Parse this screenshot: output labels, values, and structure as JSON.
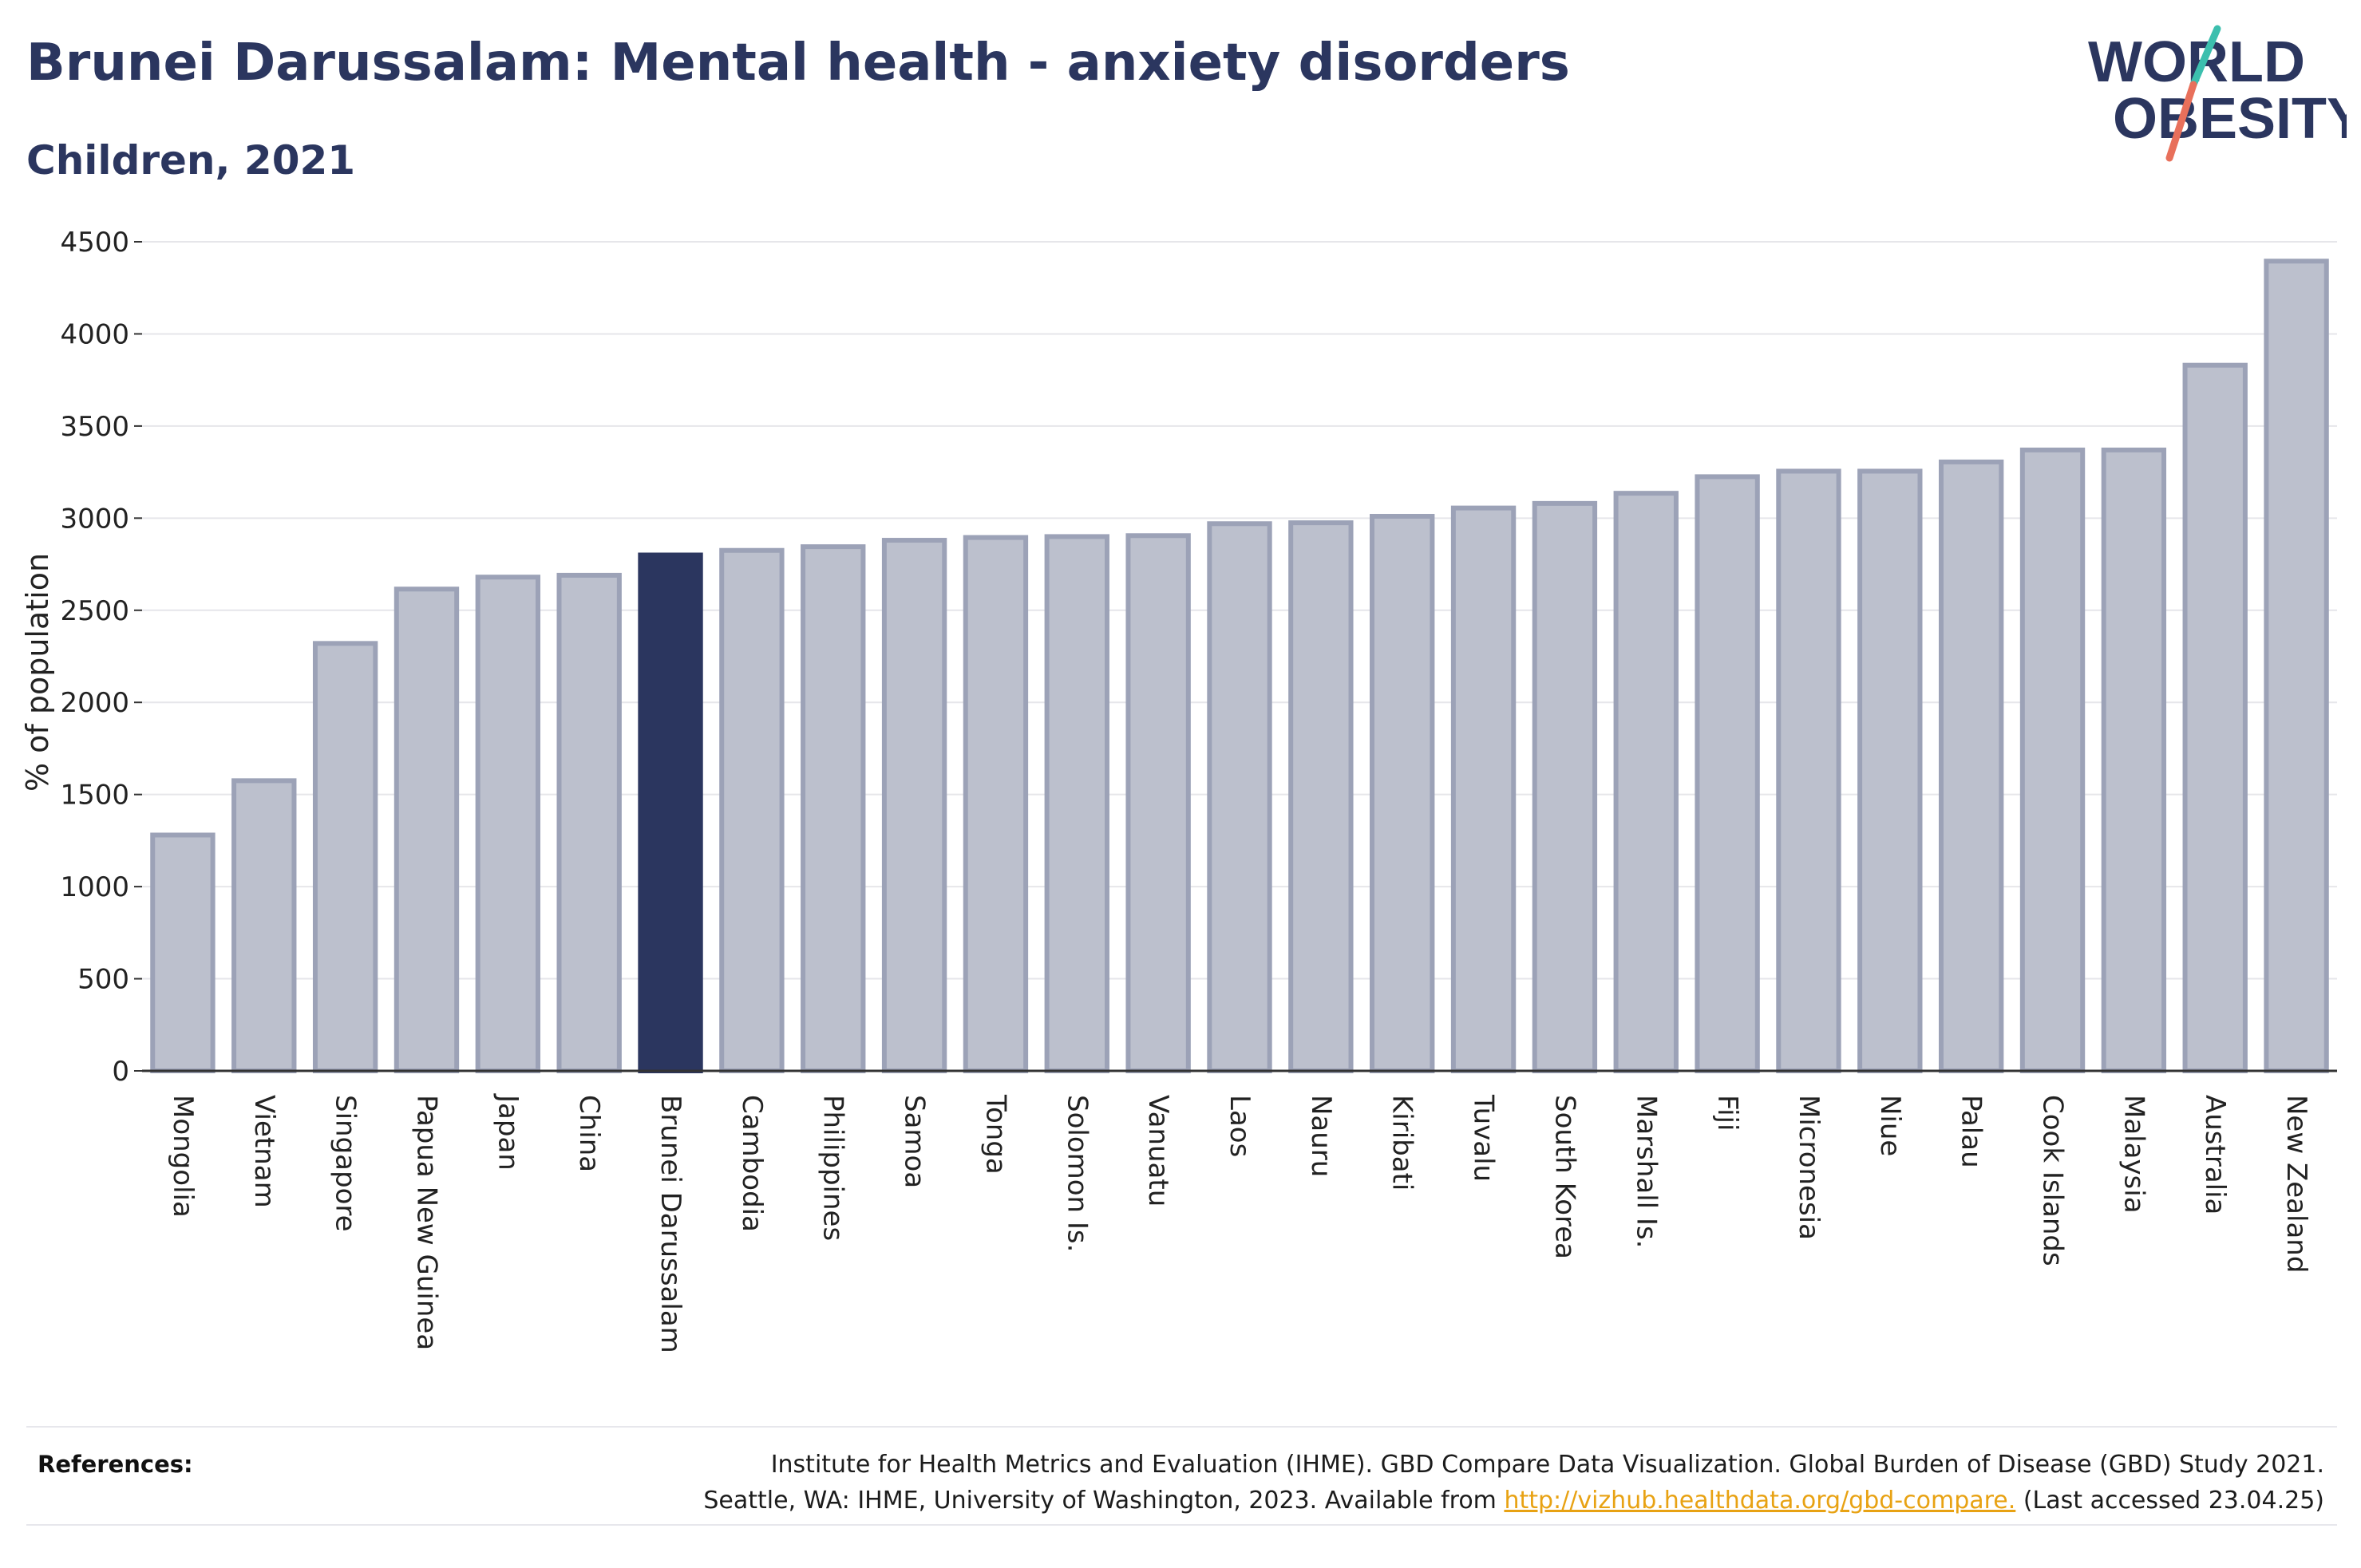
{
  "title": "Brunei Darussalam: Mental health - anxiety disorders",
  "subtitle": "Children, 2021",
  "logo": {
    "line1": "WORLD",
    "line2": "OBESITY"
  },
  "references": {
    "label": "References:",
    "line1": "Institute for Health Metrics and Evaluation (IHME). GBD Compare Data Visualization. Global Burden of Disease (GBD) Study 2021.",
    "line2_prefix": "Seattle, WA: IHME, University of Washington, 2023. Available from ",
    "link": "http://vizhub.healthdata.org/gbd-compare.",
    "line2_suffix": " (Last accessed 23.04.25)"
  },
  "colors": {
    "highlight": "#2b365f",
    "bar_fill": "#bcc0cd",
    "bar_stroke": "#9ca2b7",
    "link": "#e8a213",
    "logo_teal": "#3cbfae",
    "logo_coral": "#e8705b"
  },
  "chart_data": {
    "type": "bar",
    "ylabel": "% of population",
    "xlabel": "",
    "ylim": [
      0,
      4500
    ],
    "yticks": [
      0,
      500,
      1000,
      1500,
      2000,
      2500,
      3000,
      3500,
      4000,
      4500
    ],
    "grid": true,
    "highlight": "Brunei Darussalam",
    "categories": [
      "Mongolia",
      "Vietnam",
      "Singapore",
      "Papua New Guinea",
      "Japan",
      "China",
      "Brunei Darussalam",
      "Cambodia",
      "Philippines",
      "Samoa",
      "Tonga",
      "Solomon Is.",
      "Vanuatu",
      "Laos",
      "Nauru",
      "Kiribati",
      "Tuvalu",
      "South Korea",
      "Marshall Is.",
      "Fiji",
      "Micronesia",
      "Niue",
      "Palau",
      "Cook Islands",
      "Malaysia",
      "Australia",
      "New Zealand"
    ],
    "values": [
      1280,
      1575,
      2320,
      2615,
      2680,
      2690,
      2800,
      2825,
      2845,
      2880,
      2895,
      2900,
      2905,
      2970,
      2975,
      3010,
      3055,
      3080,
      3135,
      3225,
      3255,
      3255,
      3305,
      3370,
      3370,
      3830,
      4395
    ]
  }
}
